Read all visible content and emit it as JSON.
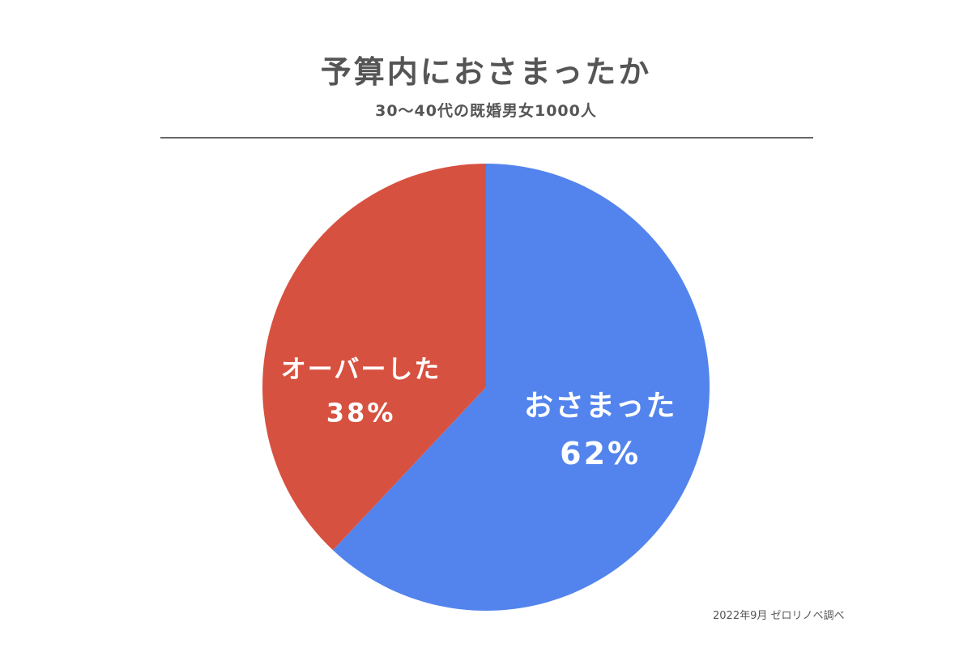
{
  "chart_data": {
    "type": "pie",
    "title": "予算内におさまったか",
    "subtitle": "30〜40代の既婚男女1000人",
    "slices": [
      {
        "label": "おさまった",
        "value": 62,
        "value_label": "62%",
        "color": "#5384ED"
      },
      {
        "label": "オーバーした",
        "value": 38,
        "value_label": "38%",
        "color": "#D75140"
      }
    ],
    "start_angle": "12 o'clock",
    "direction": "clockwise",
    "legend": "none (labels inside slices)"
  },
  "source": "2022年9月 ゼロリノベ調べ"
}
